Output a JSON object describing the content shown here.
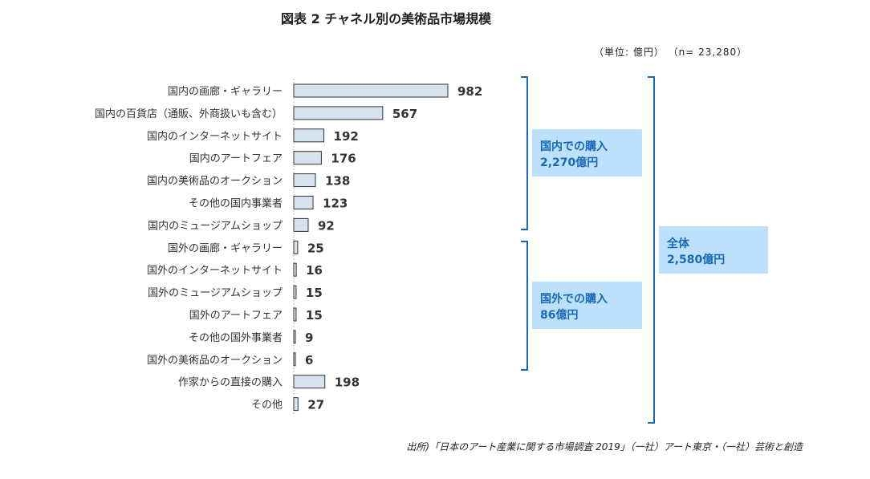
{
  "chart_data": {
    "type": "bar",
    "orientation": "horizontal",
    "title": "図表 2  チャネル別の美術品市場規模",
    "unit_note": "（単位: 億円） （n= 23,280）",
    "categories": [
      "国内の画廊・ギャラリー",
      "国内の百貨店（通販、外商扱いも含む）",
      "国内のインターネットサイト",
      "国内のアートフェア",
      "国内の美術品のオークション",
      "その他の国内事業者",
      "国内のミュージアムショップ",
      "国外の画廊・ギャラリー",
      "国外のインターネットサイト",
      "国外のミュージアムショップ",
      "国外のアートフェア",
      "その他の国外事業者",
      "国外の美術品のオークション",
      "作家からの直接の購入",
      "その他"
    ],
    "values": [
      982,
      567,
      192,
      176,
      138,
      123,
      92,
      25,
      16,
      15,
      15,
      9,
      6,
      198,
      27
    ],
    "bar_color": "#d6e3ee",
    "bar_border": "#333333",
    "grid": false,
    "annotations": [
      {
        "group": "domestic",
        "line1": "国内での購入",
        "line2": "2,270億円"
      },
      {
        "group": "foreign",
        "line1": "国外での購入",
        "line2": "86億円"
      },
      {
        "group": "total",
        "line1": "全体",
        "line2": "2,580億円"
      }
    ],
    "annotation_color": "#1769b8",
    "annotation_bg": "#bde0fb",
    "source": "出所)「日本のアート産業に関する市場調査 2019」（一社）アート東京・（一社）芸術と創造"
  }
}
